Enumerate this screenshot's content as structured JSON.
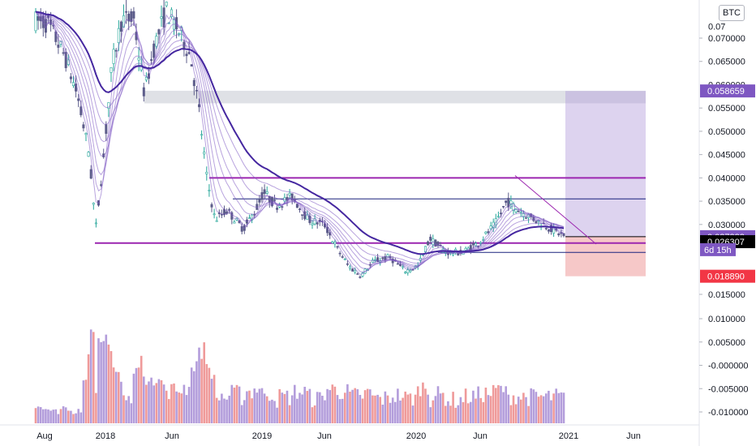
{
  "chart_data": {
    "type": "candlestick",
    "currency_label": "BTC",
    "price_axis": {
      "ticks": [
        0.07,
        0.065,
        0.055,
        0.05,
        0.045,
        0.04,
        0.035,
        0.03,
        0.015
      ],
      "tick_labels": [
        "0.070000",
        "0.065000",
        "0.055000",
        "0.050000",
        "0.045000",
        "0.040000",
        "0.035000",
        "0.030000",
        "0.015000"
      ],
      "partial_labels": [
        "0.07",
        "0.060000"
      ],
      "ylim": [
        0.0125,
        0.0765
      ]
    },
    "volume_axis": {
      "tick_labels": [
        "0.010000",
        "0.005000",
        "-0.000000",
        "-0.005000",
        "-0.010000"
      ]
    },
    "x_axis": {
      "labels": [
        "Aug",
        "2018",
        "Jun",
        "2019",
        "Jun",
        "2020",
        "Jun",
        "2021",
        "Jun"
      ]
    },
    "price_badges": [
      {
        "label": "0.058659",
        "value": 0.058659,
        "color": "#7e57c2"
      },
      {
        "label": "0.027382",
        "value": 0.027382,
        "color": "#7e57c2"
      },
      {
        "label": "0.026307",
        "value": 0.026307,
        "color": "#000000"
      },
      {
        "label": "0.018890",
        "value": 0.01889,
        "color": "#f23645"
      }
    ],
    "countdown_label": "6d 15h",
    "levels": [
      {
        "value": 0.04,
        "color": "#9c27b0"
      },
      {
        "value": 0.026,
        "color": "#9c27b0"
      },
      {
        "value": 0.0355,
        "color": "#1a237e"
      },
      {
        "value": 0.024,
        "color": "#1a237e"
      }
    ],
    "zone": {
      "y_from": 0.056,
      "y_to": 0.0587
    },
    "position": {
      "entry": 0.02738,
      "target": 0.05866,
      "stop": 0.01889
    },
    "colors": {
      "up": "#26a69a",
      "down": "#5c5c8a",
      "up_vol": "#ef9a9a",
      "down_vol": "#b39ddb",
      "ribbon": "#7e57c2",
      "ribbon_main": "#4527a0"
    }
  }
}
